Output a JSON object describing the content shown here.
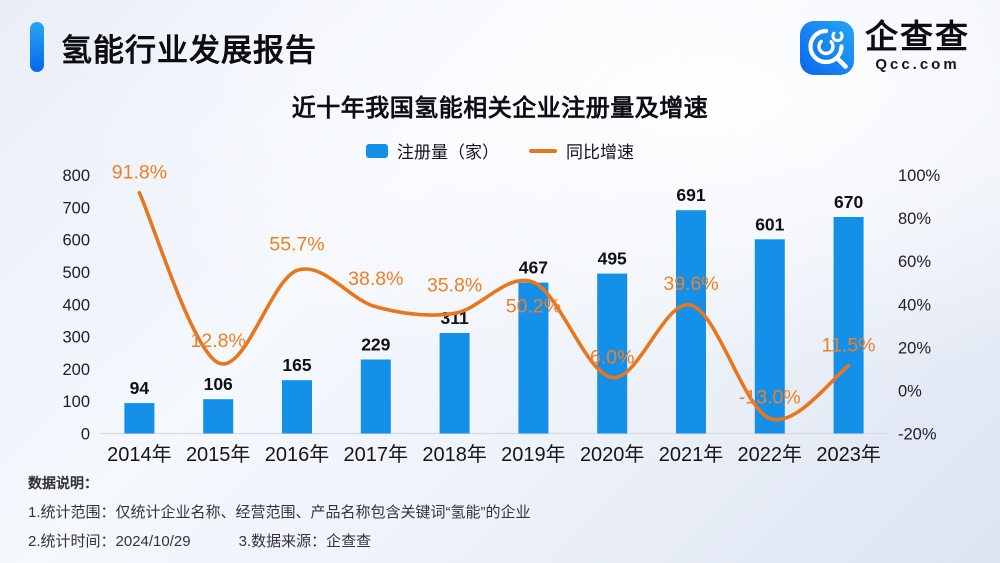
{
  "page": {
    "report_title": "氢能行业发展报告",
    "brand": {
      "name": "企查查",
      "domain": "Qcc.com"
    }
  },
  "chart_data": {
    "type": "bar",
    "title": "近十年我国氢能相关企业注册量及增速",
    "categories": [
      "2014年",
      "2015年",
      "2016年",
      "2017年",
      "2018年",
      "2019年",
      "2020年",
      "2021年",
      "2022年",
      "2023年"
    ],
    "series": [
      {
        "name": "注册量（家）",
        "type": "bar",
        "values": [
          94,
          106,
          165,
          229,
          311,
          467,
          495,
          691,
          601,
          670
        ]
      },
      {
        "name": "同比增速",
        "type": "line",
        "unit": "%",
        "values": [
          91.8,
          12.8,
          55.7,
          38.8,
          35.8,
          50.2,
          6.0,
          39.6,
          -13.0,
          11.5
        ],
        "labels": [
          "91.8%",
          "12.8%",
          "55.7%",
          "38.8%",
          "35.8%",
          "50.2%",
          "6.0%",
          "39.6%",
          "-13.0%",
          "11.5%"
        ]
      }
    ],
    "legend": [
      {
        "label": "注册量（家）",
        "type": "bar"
      },
      {
        "label": "同比增速",
        "type": "line"
      }
    ],
    "left_axis": {
      "ticks": [
        "0",
        "100",
        "200",
        "300",
        "400",
        "500",
        "600",
        "700",
        "800"
      ],
      "min": 0,
      "max": 800
    },
    "right_axis": {
      "ticks": [
        "-20%",
        "0%",
        "20%",
        "40%",
        "60%",
        "80%",
        "100%"
      ],
      "min": -20,
      "max": 100
    },
    "grid": "off",
    "legend_position": "top-center"
  },
  "notes": {
    "heading": "数据说明：",
    "line1": "1.统计范围：仅统计企业名称、经营范围、产品名称包含关键词“氢能”的企业",
    "line2": "2.统计时间：2024/10/29",
    "line3": "3.数据来源：企查查"
  },
  "colors": {
    "bar": "#1590e9",
    "line": "#e8761f",
    "percent_label": "#ec8029",
    "accent_pill_top": "#2aa4f4",
    "accent_pill_bottom": "#0668e8",
    "brand_icon_light": "#23a6f8",
    "brand_icon_dark": "#0c66ec",
    "axis_line": "#d6dae3"
  }
}
